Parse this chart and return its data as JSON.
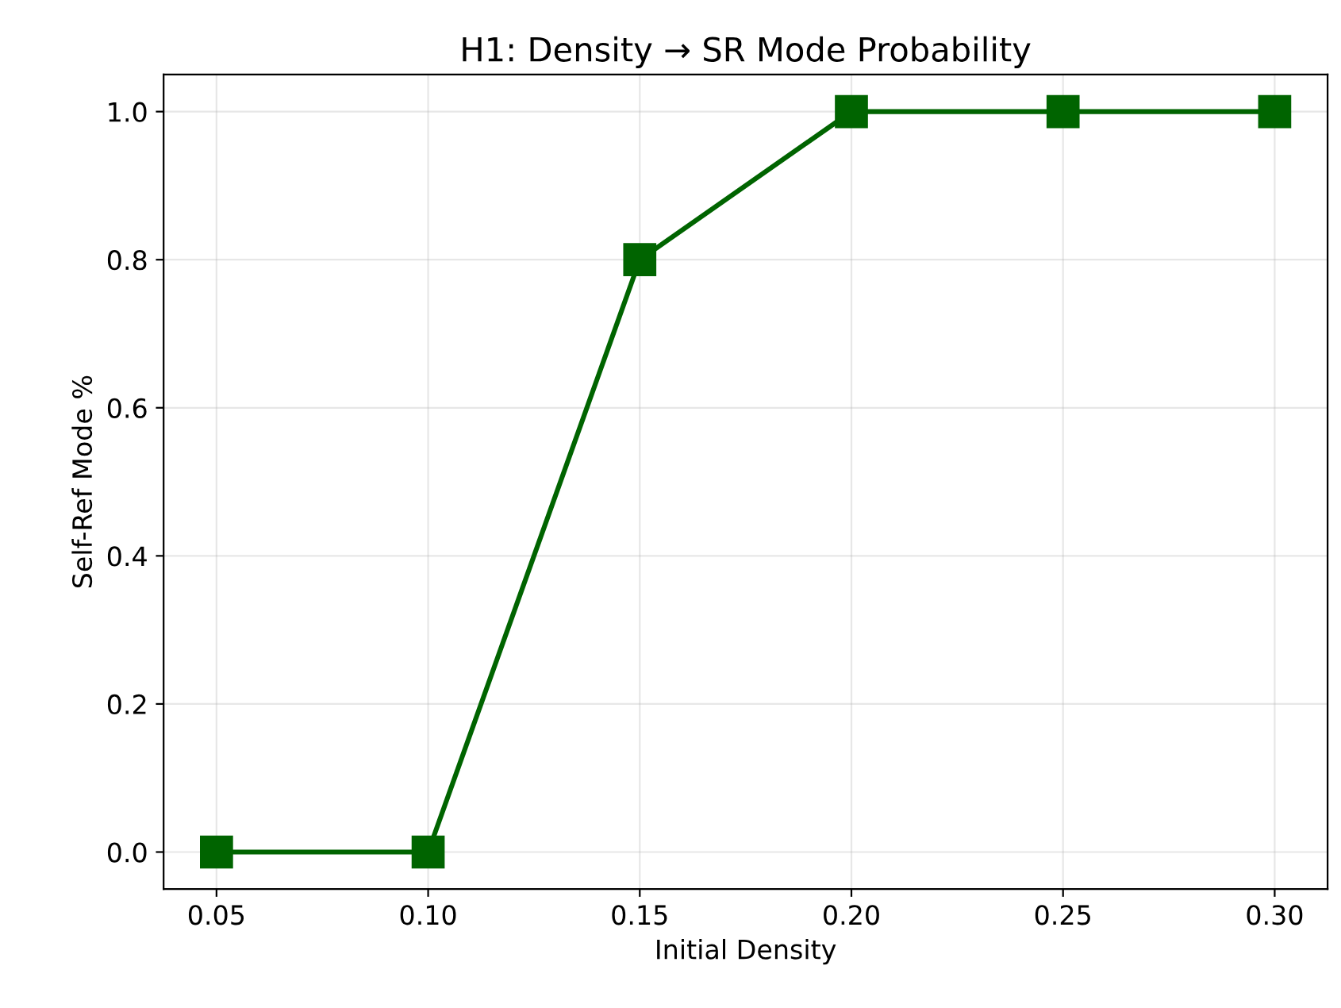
{
  "chart_data": {
    "type": "line",
    "title": "H1: Density → SR Mode Probability",
    "xlabel": "Initial Density",
    "ylabel": "Self-Ref Mode %",
    "x": [
      0.05,
      0.1,
      0.15,
      0.2,
      0.25,
      0.3
    ],
    "series": [
      {
        "color": "#006400",
        "values": [
          0.0,
          0.0,
          0.8,
          1.0,
          1.0,
          1.0
        ]
      }
    ],
    "xlim": [
      0.0375,
      0.3125
    ],
    "xticks": [
      {
        "value": 0.05,
        "label": "0.05"
      },
      {
        "value": 0.1,
        "label": "0.10"
      },
      {
        "value": 0.15,
        "label": "0.15"
      },
      {
        "value": 0.2,
        "label": "0.20"
      },
      {
        "value": 0.25,
        "label": "0.25"
      },
      {
        "value": 0.3,
        "label": "0.30"
      }
    ],
    "ylim": [
      -0.05,
      1.05
    ],
    "yticks": [
      {
        "value": 0,
        "label": "0.0"
      },
      {
        "value": 0.2,
        "label": "0.2"
      },
      {
        "value": 0.4,
        "label": "0.4"
      },
      {
        "value": 0.6,
        "label": "0.6"
      },
      {
        "value": 0.8,
        "label": "0.8"
      },
      {
        "value": 1.0,
        "label": "1.0"
      }
    ],
    "grid": true,
    "marker": "square",
    "line_style": "solid"
  }
}
